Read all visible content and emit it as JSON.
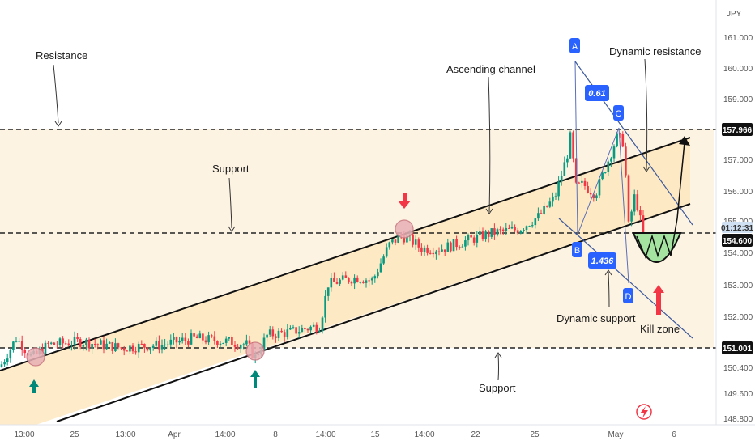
{
  "chart_data": {
    "type": "candlestick",
    "currency": "JPY",
    "y_ticks": [
      "161.000",
      "160.000",
      "159.000",
      "158.000",
      "157.000",
      "156.000",
      "155.000",
      "154.000",
      "153.000",
      "152.000",
      "151.000",
      "150.400",
      "149.600",
      "148.800"
    ],
    "ylim": [
      148.8,
      161.4
    ],
    "x_ticks": [
      "13:00",
      "25",
      "13:00",
      "Apr",
      "14:00",
      "8",
      "14:00",
      "15",
      "14:00",
      "22",
      "25",
      "May",
      "6"
    ],
    "price_labels": {
      "resistance": "157.966",
      "countdown": "01:12:31",
      "current": "154.600",
      "support": "151.001"
    },
    "levels": {
      "resistance": 157.966,
      "current": 154.6,
      "support": 151.001
    },
    "annotations": {
      "resistance": "Resistance",
      "support_top": "Support",
      "support_bottom": "Support",
      "ascending_channel": "Ascending channel",
      "dynamic_resistance": "Dynamic resistance",
      "dynamic_support": "Dynamic support",
      "kill_zone": "Kill zone"
    },
    "points": {
      "A": "A",
      "B": "B",
      "C": "C",
      "D": "D"
    },
    "ratios": {
      "r1": "0.61",
      "r2": "1.436"
    },
    "colors": {
      "up": "#089981",
      "down": "#f23645",
      "channel_fill": "#fde9c4",
      "zone_fill": "#fdf1dc",
      "badge": "#2962ff",
      "kill_zone": "#a5e3a0",
      "arrow_up": "#00897b",
      "arrow_down": "#f23645"
    },
    "icons": {
      "flash": "lightning-icon"
    }
  }
}
